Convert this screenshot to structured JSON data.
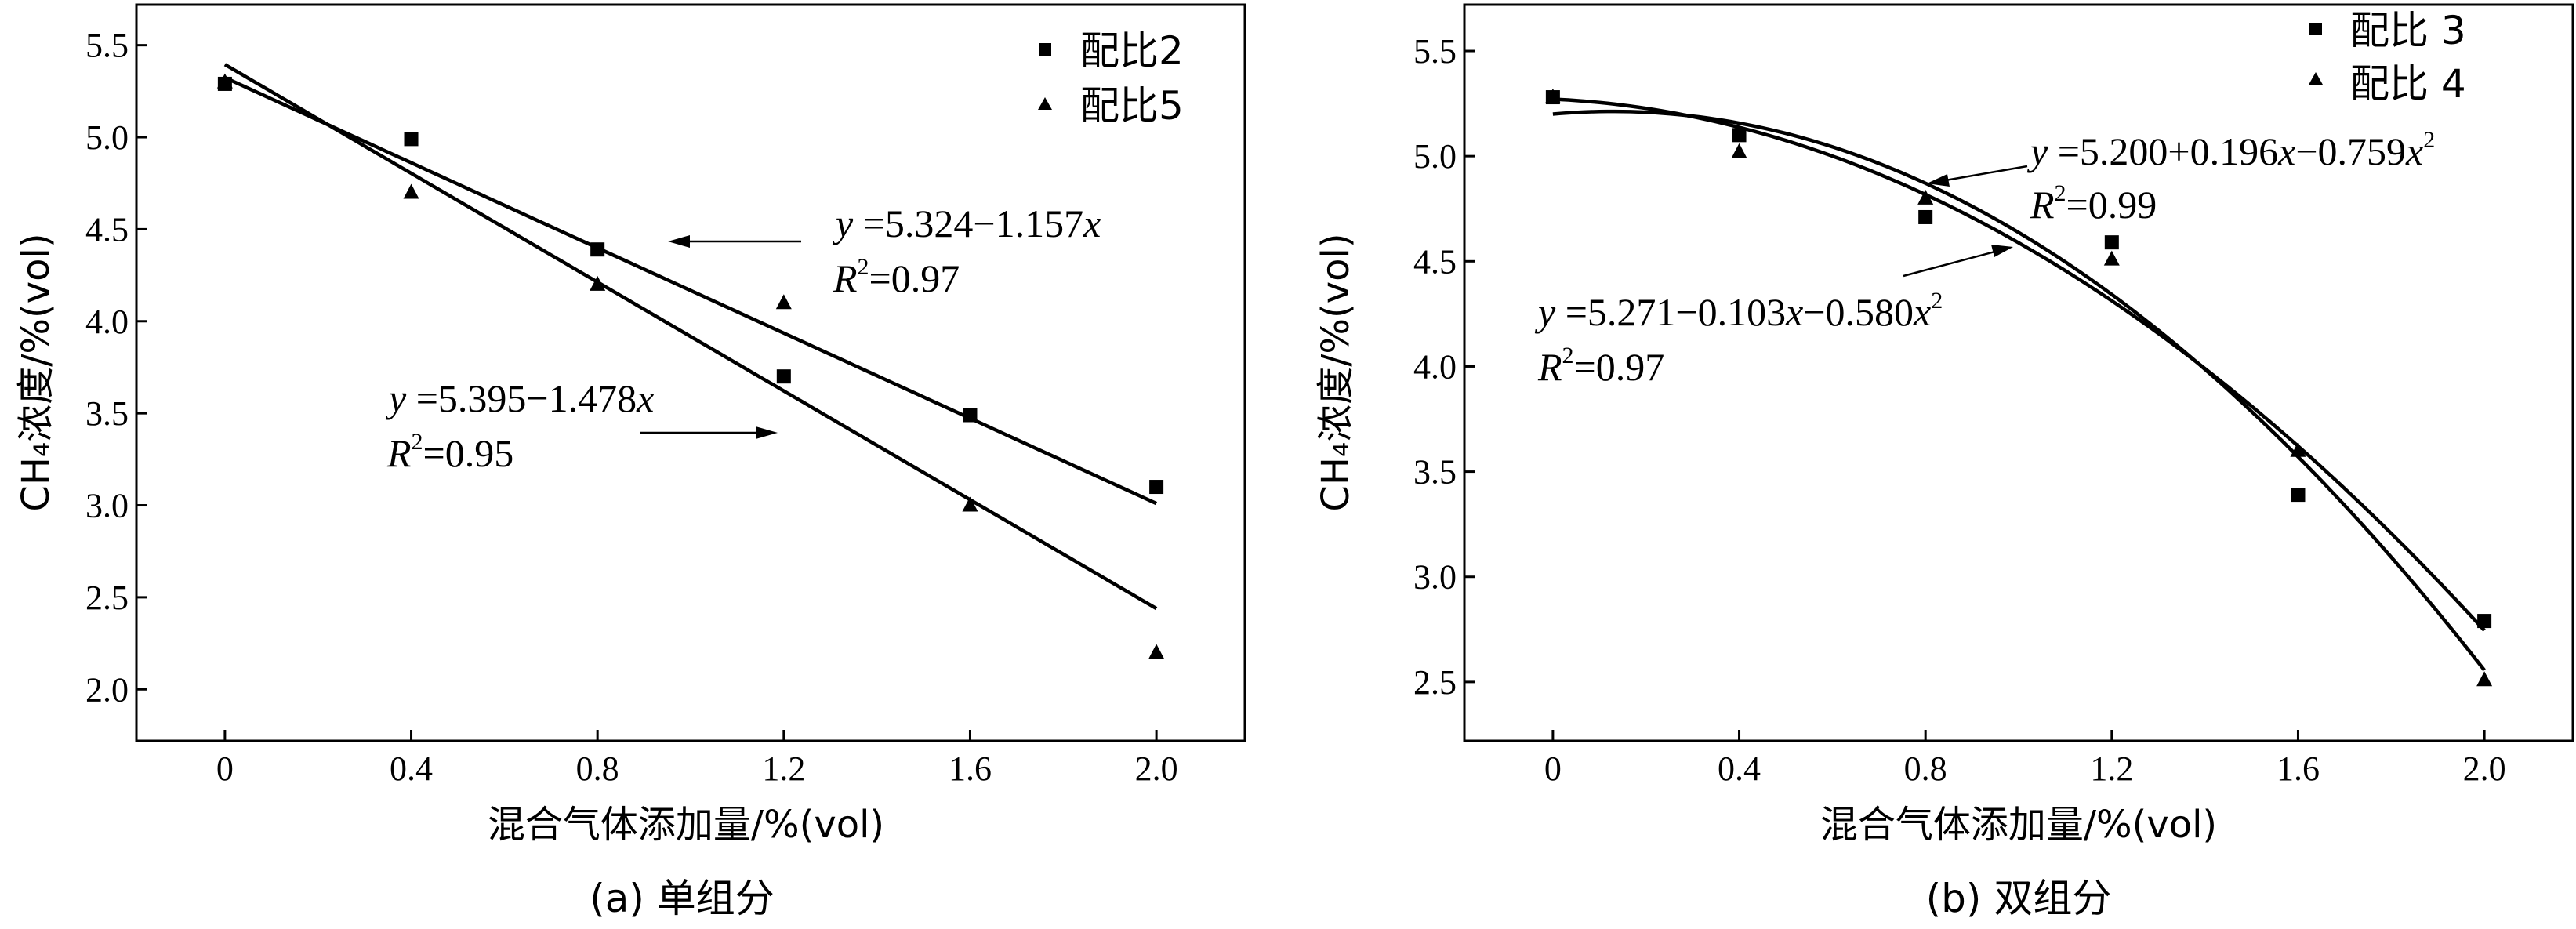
{
  "chart_data": [
    {
      "type": "scatter",
      "caption": "(a) 单组分",
      "xlabel": "混合气体添加量/%(vol)",
      "ylabel": "CH₄浓度/%(vol)",
      "xlim": [
        -0.19,
        2.19
      ],
      "ylim": [
        1.72,
        5.72
      ],
      "x_ticks": [
        0,
        0.4,
        0.8,
        1.2,
        1.6,
        2.0
      ],
      "x_tick_labels": [
        "0",
        "0.4",
        "0.8",
        "1.2",
        "1.6",
        "2.0"
      ],
      "y_ticks": [
        2.0,
        2.5,
        3.0,
        3.5,
        4.0,
        4.5,
        5.0,
        5.5
      ],
      "y_tick_labels": [
        "2.0",
        "2.5",
        "3.0",
        "3.5",
        "4.0",
        "4.5",
        "5.0",
        "5.5"
      ],
      "legend_position": "top-right",
      "series": [
        {
          "name": "配比2",
          "marker": "square",
          "x": [
            0,
            0.4,
            0.8,
            1.2,
            1.6,
            2.0
          ],
          "y": [
            5.29,
            4.99,
            4.39,
            3.7,
            3.49,
            3.1
          ],
          "fit": {
            "type": "linear",
            "coefficients": [
              5.324,
              -1.157
            ],
            "range": [
              0,
              2.0
            ]
          },
          "equation": {
            "y_label": "y",
            "rhs": " =5.324−1.157",
            "var": "x",
            "r2_label": "R",
            "r2_value": "=0.97",
            "annotation_position": "right-middle"
          }
        },
        {
          "name": "配比5",
          "marker": "triangle",
          "x": [
            0,
            0.4,
            0.8,
            1.2,
            1.6,
            2.0
          ],
          "y": [
            5.3,
            4.7,
            4.2,
            4.1,
            3.0,
            2.2
          ],
          "fit": {
            "type": "linear",
            "coefficients": [
              5.395,
              -1.478
            ],
            "range": [
              0,
              2.0
            ]
          },
          "equation": {
            "y_label": "y",
            "rhs": " =5.395−1.478",
            "var": "x",
            "r2_label": "R",
            "r2_value": "=0.95",
            "annotation_position": "left-lower"
          }
        }
      ]
    },
    {
      "type": "scatter",
      "caption": "(b) 双组分",
      "xlabel": "混合气体添加量/%(vol)",
      "ylabel": "CH₄浓度/%(vol)",
      "xlim": [
        -0.19,
        2.19
      ],
      "ylim": [
        2.22,
        5.72
      ],
      "x_ticks": [
        0,
        0.4,
        0.8,
        1.2,
        1.6,
        2.0
      ],
      "x_tick_labels": [
        "0",
        "0.4",
        "0.8",
        "1.2",
        "1.6",
        "2.0"
      ],
      "y_ticks": [
        2.5,
        3.0,
        3.5,
        4.0,
        4.5,
        5.0,
        5.5
      ],
      "y_tick_labels": [
        "2.5",
        "3.0",
        "3.5",
        "4.0",
        "4.5",
        "5.0",
        "5.5"
      ],
      "legend_position": "top-right",
      "series": [
        {
          "name": "配比 3",
          "marker": "square",
          "x": [
            0,
            0.4,
            0.8,
            1.2,
            1.6,
            2.0
          ],
          "y": [
            5.28,
            5.1,
            4.71,
            4.59,
            3.39,
            2.79
          ],
          "fit": {
            "type": "quadratic",
            "coefficients": [
              5.271,
              -0.103,
              -0.58
            ],
            "range": [
              0,
              2.0
            ]
          },
          "equation": {
            "y_label": "y",
            "rhs": " =5.271−0.103",
            "var": "x",
            "rhs2": "−0.580",
            "var2": "x",
            "sup": "2",
            "r2_label": "R",
            "r2_value": "=0.97",
            "annotation_position": "left-middle"
          }
        },
        {
          "name": "配比 4",
          "marker": "triangle",
          "x": [
            0,
            0.4,
            0.8,
            1.2,
            1.6,
            2.0
          ],
          "y": [
            5.28,
            5.02,
            4.8,
            4.51,
            3.6,
            2.51
          ],
          "fit": {
            "type": "quadratic",
            "coefficients": [
              5.2,
              0.196,
              -0.759
            ],
            "range": [
              0,
              2.0
            ]
          },
          "equation": {
            "y_label": "y",
            "rhs": " =5.200+0.196",
            "var": "x",
            "rhs2": "−0.759",
            "var2": "x",
            "sup": "2",
            "r2_label": "R",
            "r2_value": "=0.99",
            "annotation_position": "top-right"
          }
        }
      ]
    }
  ]
}
